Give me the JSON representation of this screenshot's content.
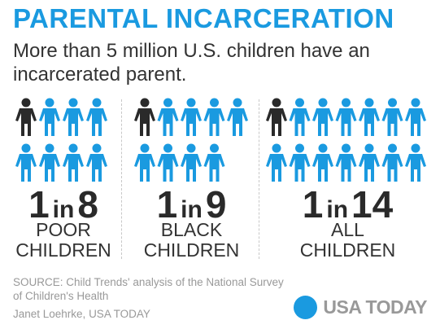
{
  "title": "PARENTAL INCARCERATION",
  "subtitle": "More than 5 million U.S. children have an incarcerated parent.",
  "colors": {
    "accent": "#1a9ae0",
    "highlight": "#2a2a2a"
  },
  "icon_name": "child-figure-icon",
  "panels": [
    {
      "ratio_num": "1",
      "ratio_in": "in",
      "ratio_den": "8",
      "total": 8,
      "highlighted": 1,
      "line1": "POOR",
      "line2": "CHILDREN"
    },
    {
      "ratio_num": "1",
      "ratio_in": "in",
      "ratio_den": "9",
      "total": 9,
      "highlighted": 1,
      "line1": "BLACK",
      "line2": "CHILDREN"
    },
    {
      "ratio_num": "1",
      "ratio_in": "in",
      "ratio_den": "14",
      "total": 14,
      "highlighted": 1,
      "line1": "ALL",
      "line2": "CHILDREN"
    }
  ],
  "source": "SOURCE:  Child Trends' analysis of the National Survey of Children's Health",
  "credit": "Janet Loehrke, USA TODAY",
  "brand": "USA TODAY"
}
